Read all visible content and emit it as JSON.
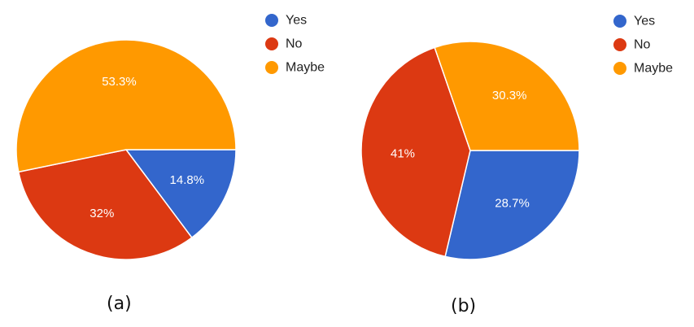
{
  "chart_data": [
    {
      "type": "pie",
      "panel_label": "(a)",
      "slices": [
        {
          "label": "Yes",
          "value": 14.8,
          "text": "14.8%",
          "color": "#3366cc"
        },
        {
          "label": "No",
          "value": 32,
          "text": "32%",
          "color": "#dc3912"
        },
        {
          "label": "Maybe",
          "value": 53.3,
          "text": "53.3%",
          "color": "#ff9900"
        }
      ],
      "legend": {
        "placement": "right",
        "entries": [
          "Yes",
          "No",
          "Maybe"
        ]
      }
    },
    {
      "type": "pie",
      "panel_label": "(b)",
      "slices": [
        {
          "label": "Yes",
          "value": 28.7,
          "text": "28.7%",
          "color": "#3366cc"
        },
        {
          "label": "No",
          "value": 41,
          "text": "41%",
          "color": "#dc3912"
        },
        {
          "label": "Maybe",
          "value": 30.3,
          "text": "30.3%",
          "color": "#ff9900"
        }
      ],
      "legend": {
        "placement": "right",
        "entries": [
          "Yes",
          "No",
          "Maybe"
        ]
      }
    }
  ]
}
